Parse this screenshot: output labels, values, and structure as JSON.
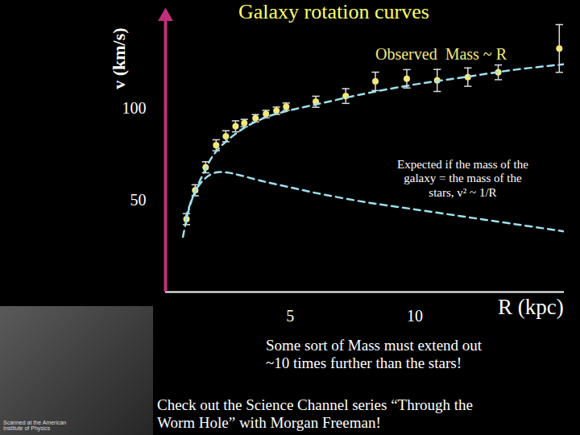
{
  "chart_data": {
    "type": "scatter",
    "title": "Galaxy rotation curves",
    "x_label": "R (kpc)",
    "y_label": "v (km/s)",
    "xlim": [
      0,
      16
    ],
    "ylim": [
      0,
      150
    ],
    "xticks": [
      5,
      10
    ],
    "yticks": [
      50,
      100
    ],
    "grid": false,
    "series": [
      {
        "type": "scatter",
        "marker": "circle",
        "color": "#f2e878",
        "x": [
          0.84,
          1.19,
          1.61,
          2.03,
          2.42,
          2.81,
          3.16,
          3.61,
          4.03,
          4.45,
          4.84,
          6.03,
          7.23,
          8.42,
          9.68,
          10.9,
          12.13,
          13.35,
          15.8
        ],
        "values": [
          39.7,
          55.4,
          67.9,
          79.9,
          84.8,
          90.2,
          92.0,
          94.6,
          96.9,
          98.7,
          100.9,
          103.6,
          106.7,
          114.7,
          116.1,
          115.2,
          117.0,
          119.6,
          132.6
        ],
        "errors": [
          3,
          3,
          3,
          3,
          3,
          3,
          2,
          2,
          2,
          2,
          2,
          3,
          4,
          5,
          5,
          6,
          5,
          4,
          13
        ]
      },
      {
        "type": "line",
        "line_style": "dashed",
        "color": "#9fe0ee",
        "x": [
          0.7,
          1,
          1.5,
          2,
          3,
          4,
          5,
          6,
          8,
          10,
          12,
          14,
          16
        ],
        "values": [
          30,
          48,
          64,
          76,
          88,
          95,
          99,
          102,
          108,
          113,
          117,
          121,
          124
        ]
      },
      {
        "type": "line",
        "line_style": "dashed",
        "color": "#9fe0ee",
        "x": [
          0.8,
          1.2,
          1.6,
          2,
          2.5,
          3,
          4,
          5,
          6,
          8,
          10,
          12,
          14,
          16
        ],
        "values": [
          40,
          55,
          62,
          65,
          65,
          63.5,
          60,
          57,
          54,
          49,
          45,
          41,
          37,
          33
        ]
      }
    ],
    "annotations": [
      {
        "text": "Observed  Mass ~ R",
        "color": "#f2e878"
      },
      {
        "text": "Expected if the mass of the\ngalaxy = the mass of the\nstars, v² ~ 1/R",
        "color": "#ffffff"
      },
      {
        "text": "Some sort of Mass must extend out\n~10 times further than the stars!",
        "color": "#ffffff"
      },
      {
        "text": "Check out the Science Channel series “Through the\nWorm Hole” with Morgan Freeman!",
        "color": "#ffffff"
      },
      {
        "text": "Scanned at the American\nInstitute of Physics",
        "color": "#dddddd"
      }
    ]
  }
}
